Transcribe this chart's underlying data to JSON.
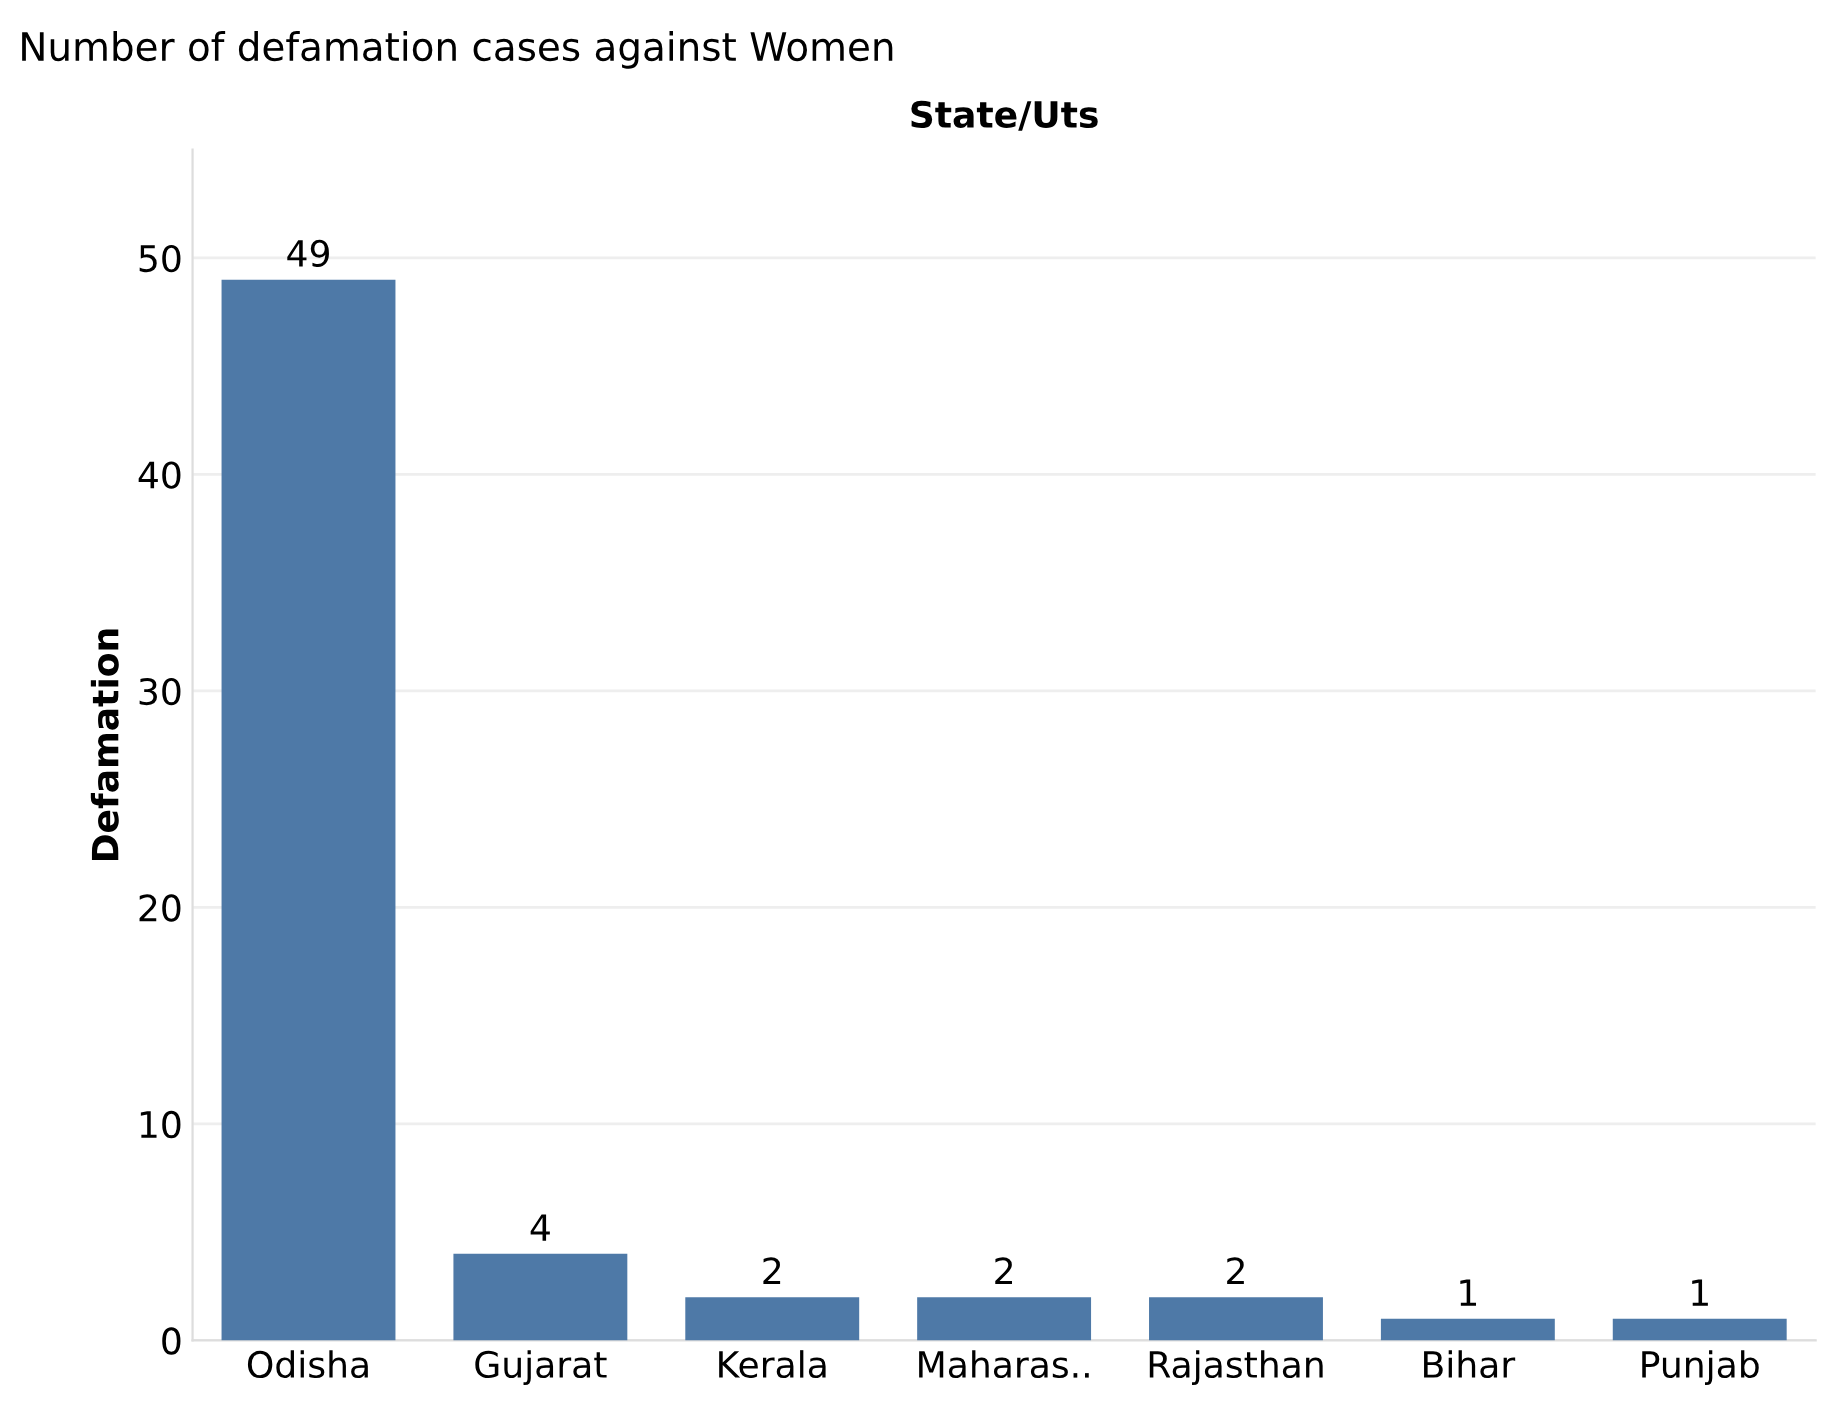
{
  "chart_data": {
    "type": "bar",
    "title": "Number of defamation cases against Women",
    "xlabel": "State/Uts",
    "ylabel": "Defamation",
    "categories": [
      "Odisha",
      "Gujarat",
      "Kerala",
      "Maharas..",
      "Rajasthan",
      "Bihar",
      "Punjab"
    ],
    "values": [
      49,
      4,
      2,
      2,
      2,
      1,
      1
    ],
    "color": "#4e79a7",
    "ylim": [
      0,
      55
    ],
    "yticks": [
      0,
      10,
      20,
      30,
      40,
      50
    ],
    "grid": "y",
    "data_labels": true
  }
}
